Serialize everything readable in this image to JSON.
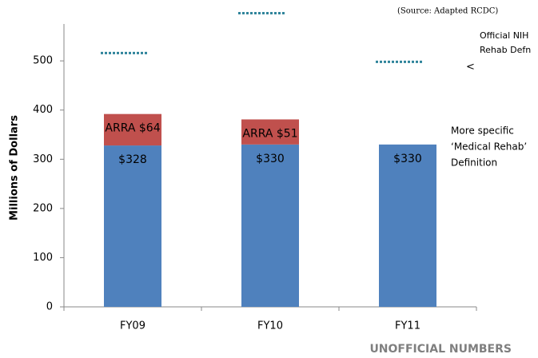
{
  "chart_data": {
    "type": "stacked-bar",
    "categories": [
      "FY09",
      "FY10",
      "FY11"
    ],
    "series": [
      {
        "color": "#4f81bd",
        "values": [
          328,
          330,
          330
        ],
        "value_labels": [
          "$328",
          "$330",
          "$330"
        ]
      },
      {
        "color": "#c0504d",
        "values": [
          64,
          51,
          null
        ],
        "value_labels": [
          "ARRA $64",
          "ARRA $51",
          null
        ]
      }
    ],
    "reference": {
      "color": "#31859c",
      "values": [
        516,
        597,
        498
      ],
      "label": [
        "Official NIH",
        "Rehab Defn"
      ]
    },
    "y_label": "Millions of Dollars",
    "ylim": [
      0,
      575
    ],
    "yticks": [
      0,
      100,
      200,
      300,
      400,
      500
    ],
    "source": "(Source: Adapted RCDC)",
    "arrow": "<",
    "note": [
      "More specific",
      "‘Medical Rehab’",
      "Definition"
    ],
    "footer": "UNOFFICIAL NUMBERS"
  }
}
